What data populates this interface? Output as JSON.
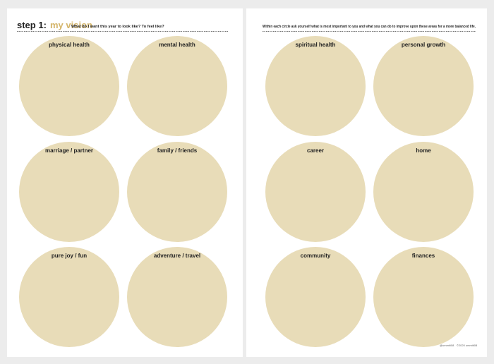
{
  "header": {
    "step": "step 1:",
    "title": "my vision",
    "prompt": "What do I want this year to look like? To feel like?"
  },
  "instructions": "Within each circle ask yourself what is most important to you and what you can do to improve upon these areas for a more balanced life.",
  "left_circles": [
    "physical health",
    "mental health",
    "marriage / partner",
    "family / friends",
    "pure joy / fun",
    "adventure / travel"
  ],
  "right_circles": [
    "spiritual health",
    "personal growth",
    "career",
    "home",
    "community",
    "finances"
  ],
  "footer": [
    "@ummiti08",
    "©2020 ummiti08"
  ]
}
